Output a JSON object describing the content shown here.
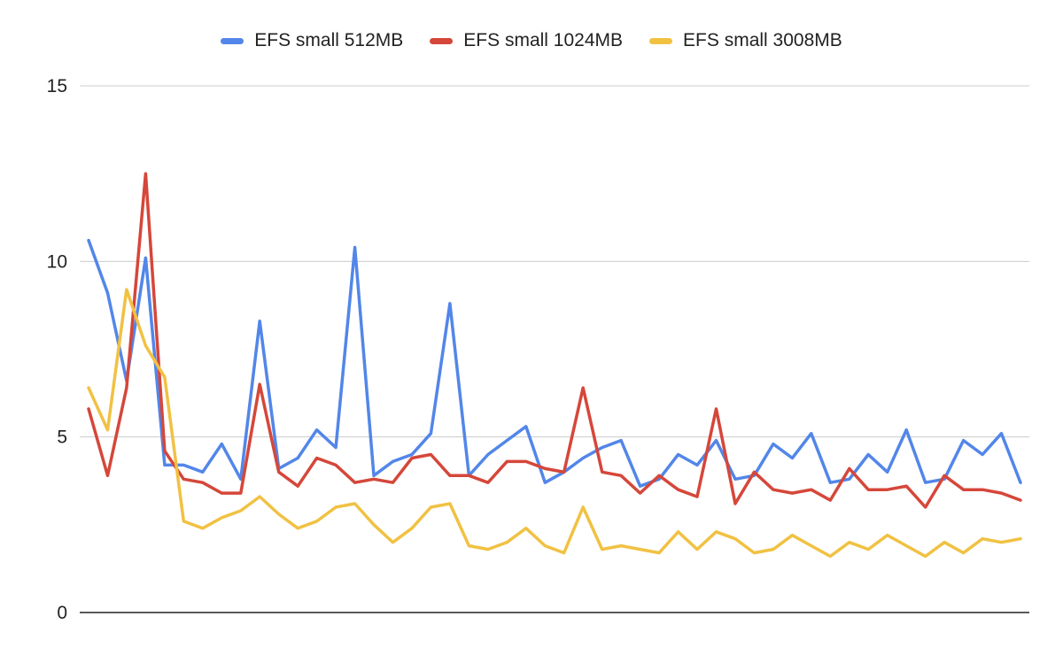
{
  "chart_data": {
    "type": "line",
    "title": "",
    "xlabel": "",
    "ylabel": "",
    "ylim": [
      0,
      15
    ],
    "yticks": [
      0,
      5,
      10,
      15
    ],
    "grid": true,
    "legend_position": "top",
    "series": [
      {
        "name": "EFS small 512MB",
        "color": "#5286E9",
        "values": [
          10.6,
          9.1,
          6.6,
          10.1,
          4.2,
          4.2,
          4.0,
          4.8,
          3.8,
          8.3,
          4.1,
          4.4,
          5.2,
          4.7,
          10.4,
          3.9,
          4.3,
          4.5,
          5.1,
          8.8,
          3.9,
          4.5,
          4.9,
          5.3,
          3.7,
          4.0,
          4.4,
          4.7,
          4.9,
          3.6,
          3.8,
          4.5,
          4.2,
          4.9,
          3.8,
          3.9,
          4.8,
          4.4,
          5.1,
          3.7,
          3.8,
          4.5,
          4.0,
          5.2,
          3.7,
          3.8,
          4.9,
          4.5,
          5.1,
          3.7
        ]
      },
      {
        "name": "EFS small 1024MB",
        "color": "#D5473A",
        "values": [
          5.8,
          3.9,
          6.4,
          12.5,
          4.6,
          3.8,
          3.7,
          3.4,
          3.4,
          6.5,
          4.0,
          3.6,
          4.4,
          4.2,
          3.7,
          3.8,
          3.7,
          4.4,
          4.5,
          3.9,
          3.9,
          3.7,
          4.3,
          4.3,
          4.1,
          4.0,
          6.4,
          4.0,
          3.9,
          3.4,
          3.9,
          3.5,
          3.3,
          5.8,
          3.1,
          4.0,
          3.5,
          3.4,
          3.5,
          3.2,
          4.1,
          3.5,
          3.5,
          3.6,
          3.0,
          3.9,
          3.5,
          3.5,
          3.4,
          3.2
        ]
      },
      {
        "name": "EFS small 3008MB",
        "color": "#F1C142",
        "values": [
          6.4,
          5.2,
          9.2,
          7.6,
          6.7,
          2.6,
          2.4,
          2.7,
          2.9,
          3.3,
          2.8,
          2.4,
          2.6,
          3.0,
          3.1,
          2.5,
          2.0,
          2.4,
          3.0,
          3.1,
          1.9,
          1.8,
          2.0,
          2.4,
          1.9,
          1.7,
          3.0,
          1.8,
          1.9,
          1.8,
          1.7,
          2.3,
          1.8,
          2.3,
          2.1,
          1.7,
          1.8,
          2.2,
          1.9,
          1.6,
          2.0,
          1.8,
          2.2,
          1.9,
          1.6,
          2.0,
          1.7,
          2.1,
          2.0,
          2.1
        ]
      }
    ]
  }
}
